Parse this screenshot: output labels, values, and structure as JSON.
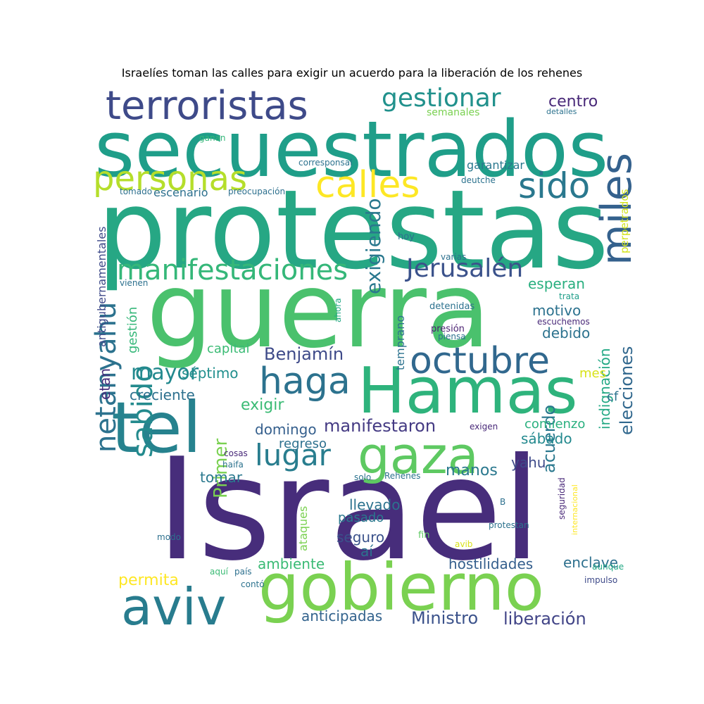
{
  "title": "Israelíes toman las calles para exigir un acuerdo para la liberación de los rehenes",
  "words": [
    {
      "text": "Israel",
      "color": "#472d7b"
    },
    {
      "text": "protestas",
      "color": "#26a784"
    },
    {
      "text": "guerra",
      "color": "#4ac16d"
    },
    {
      "text": "secuestrados",
      "color": "#1f9e89"
    },
    {
      "text": "gobierno",
      "color": "#7ad151"
    },
    {
      "text": "Hamas",
      "color": "#2eb37c"
    },
    {
      "text": "tel",
      "color": "#26828e"
    },
    {
      "text": "aviv",
      "color": "#287c8e"
    },
    {
      "text": "miles",
      "color": "#34618d"
    },
    {
      "text": "terroristas",
      "color": "#3e4a89"
    },
    {
      "text": "gaza",
      "color": "#5ec962"
    },
    {
      "text": "octubre",
      "color": "#31688e"
    },
    {
      "text": "haga",
      "color": "#2c728e"
    },
    {
      "text": "personas",
      "color": "#b5de2b"
    },
    {
      "text": "calles",
      "color": "#fde725"
    },
    {
      "text": "sido",
      "color": "#2a788e"
    },
    {
      "text": "manifestaciones",
      "color": "#35b779"
    },
    {
      "text": "Jerusalén",
      "color": "#3b528b"
    },
    {
      "text": "gestionar",
      "color": "#21918c"
    },
    {
      "text": "netanyahu",
      "color": "#2c728e"
    },
    {
      "text": "sabido",
      "color": "#238a8d"
    },
    {
      "text": "lugar",
      "color": "#287d8e"
    },
    {
      "text": "mayor",
      "color": "#23898e"
    },
    {
      "text": "exigiendo",
      "color": "#2a788e"
    },
    {
      "text": "Benjamín",
      "color": "#3e4a89"
    },
    {
      "text": "manifestaron",
      "color": "#443a83"
    },
    {
      "text": "Primer",
      "color": "#7ad151"
    },
    {
      "text": "elecciones",
      "color": "#31688e"
    },
    {
      "text": "acuerdo",
      "color": "#2a788e"
    },
    {
      "text": "indignación",
      "color": "#22a884"
    },
    {
      "text": "Ministro",
      "color": "#3b528b"
    },
    {
      "text": "liberación",
      "color": "#414487"
    },
    {
      "text": "hostilidades",
      "color": "#355f8d"
    },
    {
      "text": "enclave",
      "color": "#2d708e"
    },
    {
      "text": "anticipadas",
      "color": "#33638d"
    },
    {
      "text": "permita",
      "color": "#fde725"
    },
    {
      "text": "centro",
      "color": "#482878"
    },
    {
      "text": "esperan",
      "color": "#29af7f"
    },
    {
      "text": "motivo",
      "color": "#2c728e"
    },
    {
      "text": "debido",
      "color": "#2c728e"
    },
    {
      "text": "exigir",
      "color": "#3bbb75"
    },
    {
      "text": "creciente",
      "color": "#2d708e"
    },
    {
      "text": "séptimo",
      "color": "#218f8d"
    },
    {
      "text": "domingo",
      "color": "#355f8d"
    },
    {
      "text": "sábado",
      "color": "#23898e"
    },
    {
      "text": "manos",
      "color": "#2a788e"
    },
    {
      "text": "yahu",
      "color": "#3e4a89"
    },
    {
      "text": "tomar",
      "color": "#2a788e"
    },
    {
      "text": "llevado",
      "color": "#2c728e"
    },
    {
      "text": "pasado",
      "color": "#2a788e"
    },
    {
      "text": "seguro",
      "color": "#3b528b"
    },
    {
      "text": "aí",
      "color": "#2c728e"
    },
    {
      "text": "ambiente",
      "color": "#3bbb75"
    },
    {
      "text": "etan",
      "color": "#472d7b"
    },
    {
      "text": "gestión",
      "color": "#35b779"
    },
    {
      "text": "capital",
      "color": "#3bbb75"
    },
    {
      "text": "comienzo",
      "color": "#2ab07f"
    },
    {
      "text": "regreso",
      "color": "#2d708e"
    },
    {
      "text": "temprano",
      "color": "#2c728e"
    },
    {
      "text": "escenario",
      "color": "#2d708e"
    },
    {
      "text": "garantizar",
      "color": "#2a788e"
    },
    {
      "text": "mes",
      "color": "#d8e219"
    },
    {
      "text": "cf",
      "color": "#2c728e"
    },
    {
      "text": "antigubernamentales",
      "color": "#3e4a89"
    },
    {
      "text": "perpetrados",
      "color": "#d2e21b"
    },
    {
      "text": "ataques",
      "color": "#7ad151"
    },
    {
      "text": "semanales",
      "color": "#7ad151"
    },
    {
      "text": "detalles",
      "color": "#2c728e"
    },
    {
      "text": "ganan",
      "color": "#35b779"
    },
    {
      "text": "corresponsal",
      "color": "#2c728e"
    },
    {
      "text": "tomado",
      "color": "#2d708e"
    },
    {
      "text": "preocupación",
      "color": "#2d708e"
    },
    {
      "text": "deutche",
      "color": "#2c728e"
    },
    {
      "text": "hoy",
      "color": "#2d708e"
    },
    {
      "text": "varias",
      "color": "#2d708e"
    },
    {
      "text": "vienen",
      "color": "#2d708e"
    },
    {
      "text": "trata",
      "color": "#1f9e89"
    },
    {
      "text": "ahora",
      "color": "#22a884"
    },
    {
      "text": "detenidas",
      "color": "#2c728e"
    },
    {
      "text": "escuchemos",
      "color": "#482878"
    },
    {
      "text": "presión",
      "color": "#481f70"
    },
    {
      "text": "piensa",
      "color": "#2c728e"
    },
    {
      "text": "exigen",
      "color": "#482878"
    },
    {
      "text": "cosas",
      "color": "#482878"
    },
    {
      "text": "haifa",
      "color": "#2c728e"
    },
    {
      "text": "solo",
      "color": "#2c728e"
    },
    {
      "text": "Rehenes",
      "color": "#2c728e"
    },
    {
      "text": "seguridad",
      "color": "#482878"
    },
    {
      "text": "internacional",
      "color": "#fde725"
    },
    {
      "text": "B",
      "color": "#2d708e"
    },
    {
      "text": "modo",
      "color": "#2d708e"
    },
    {
      "text": "fin",
      "color": "#5ec962"
    },
    {
      "text": "protestan",
      "color": "#2c728e"
    },
    {
      "text": "avib",
      "color": "#d8e219"
    },
    {
      "text": "aunque",
      "color": "#22a884"
    },
    {
      "text": "aquí",
      "color": "#3bbb75"
    },
    {
      "text": "país",
      "color": "#2d708e"
    },
    {
      "text": "contó",
      "color": "#2c728e"
    },
    {
      "text": "impulso",
      "color": "#3e4a89"
    }
  ]
}
